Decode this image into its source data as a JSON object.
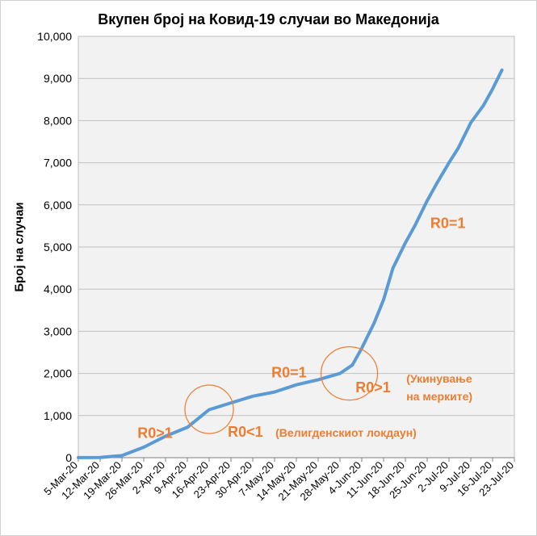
{
  "chart_data": {
    "type": "line",
    "title": "Вкупен број на Ковид-19 случаи во Македонија",
    "xlabel": "",
    "ylabel": "Број на случаи",
    "ylim": [
      0,
      10000
    ],
    "y_ticks": [
      0,
      1000,
      2000,
      3000,
      4000,
      5000,
      6000,
      7000,
      8000,
      9000,
      10000
    ],
    "y_tick_labels": [
      "0",
      "1,000",
      "2,000",
      "3,000",
      "4,000",
      "5,000",
      "6,000",
      "7,000",
      "8,000",
      "9,000",
      "10,000"
    ],
    "x_tick_labels": [
      "5-Mar-20",
      "12-Mar-20",
      "19-Mar-20",
      "26-Mar-20",
      "2-Apr-20",
      "9-Apr-20",
      "16-Apr-20",
      "23-Apr-20",
      "30-Apr-20",
      "7-May-20",
      "14-May-20",
      "21-May-20",
      "28-May-20",
      "4-Jun-20",
      "11-Jun-20",
      "18-Jun-20",
      "25-Jun-20",
      "2-Jul-20",
      "9-Jul-20",
      "16-Jul-20",
      "23-Jul-20"
    ],
    "grid": true,
    "legend": "none",
    "series": [
      {
        "color": "#5b9bd5",
        "x": [
          "5-Mar-20",
          "12-Mar-20",
          "19-Mar-20",
          "26-Mar-20",
          "2-Apr-20",
          "9-Apr-20",
          "16-Apr-20",
          "23-Apr-20",
          "30-Apr-20",
          "7-May-20",
          "14-May-20",
          "21-May-20",
          "28-May-20",
          "1-Jun-20",
          "4-Jun-20",
          "8-Jun-20",
          "11-Jun-20",
          "14-Jun-20",
          "18-Jun-20",
          "21-Jun-20",
          "25-Jun-20",
          "28-Jun-20",
          "2-Jul-20",
          "5-Jul-20",
          "9-Jul-20",
          "13-Jul-20",
          "16-Jul-20",
          "19-Jul-20"
        ],
        "values": [
          1,
          5,
          50,
          250,
          510,
          720,
          1140,
          1300,
          1460,
          1560,
          1730,
          1850,
          2000,
          2200,
          2600,
          3200,
          3750,
          4500,
          5100,
          5500,
          6100,
          6500,
          7000,
          7350,
          7950,
          8350,
          8750,
          9200
        ]
      }
    ]
  },
  "annotations": [
    {
      "text": "R0>1",
      "note": ""
    },
    {
      "text": "R0<1",
      "note": "(Велигденскиот локдаун)"
    },
    {
      "text": "R0=1",
      "note": ""
    },
    {
      "text": "R0>1",
      "note": "(Укинување\nна мерките)"
    },
    {
      "text": "R0=1",
      "note": ""
    }
  ],
  "colors": {
    "line": "#5b9bd5",
    "annotation": "#ed7d31",
    "plot_bg": "#f2f2f2",
    "grid": "#bfbfbf"
  }
}
